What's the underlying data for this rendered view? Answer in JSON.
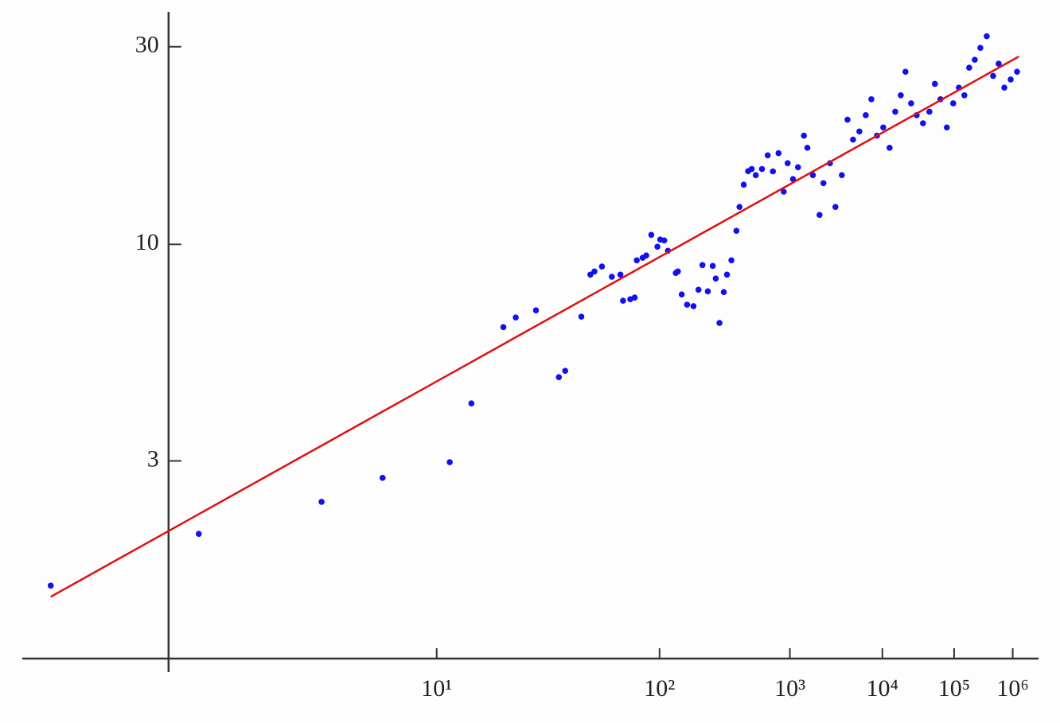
{
  "chart_data": {
    "type": "scatter",
    "xscale": "loglog",
    "yscale": "log",
    "xlim": [
      1.886,
      3170000
    ],
    "ylim": [
      1,
      35.6
    ],
    "xticks": [
      {
        "value": 10,
        "label": "10¹"
      },
      {
        "value": 100,
        "label": "10²"
      },
      {
        "value": 1000,
        "label": "10³"
      },
      {
        "value": 10000,
        "label": "10⁴"
      },
      {
        "value": 100000,
        "label": "10⁵"
      },
      {
        "value": 1000000,
        "label": "10⁶"
      }
    ],
    "yticks": [
      3,
      10,
      30
    ],
    "series": [
      {
        "type": "scatter",
        "color": "#1010f0",
        "x": [
          2,
          3,
          5,
          7,
          11,
          13,
          17,
          19,
          23,
          29,
          31,
          37,
          41,
          43,
          47,
          53,
          59,
          61,
          67,
          71,
          73,
          79,
          83,
          89,
          97,
          101,
          107,
          113,
          127,
          131,
          139,
          151,
          167,
          181,
          193,
          211,
          229,
          241,
          257,
          277,
          293,
          317,
          347,
          367,
          397,
          431,
          461,
          499,
          563,
          631,
          701,
          787,
          877,
          953,
          1069,
          1193,
          1361,
          1471,
          1669,
          1949,
          2137,
          2503,
          2861,
          3359,
          3877,
          4481,
          5297,
          6287,
          7331,
          8573,
          10253,
          12329,
          14557,
          17203,
          19861,
          23663,
          28183,
          34591,
          42649,
          51283,
          61949,
          77263,
          96827,
          118583,
          145207,
          173777,
          214789,
          266081,
          341983,
          441583,
          553351,
          699851,
          916229,
          1205047
        ],
        "values": [
          1.5,
          2.0,
          2.39,
          2.73,
          2.98,
          4.13,
          6.31,
          6.66,
          6.93,
          4.78,
          4.95,
          6.69,
          8.45,
          8.6,
          8.84,
          8.35,
          8.45,
          7.31,
          7.37,
          7.44,
          9.15,
          9.28,
          9.4,
          10.54,
          9.87,
          10.27,
          10.22,
          9.65,
          8.53,
          8.6,
          7.57,
          7.15,
          7.09,
          7.77,
          8.91,
          7.7,
          8.87,
          8.27,
          6.46,
          7.67,
          8.45,
          9.15,
          10.78,
          12.31,
          13.93,
          15.02,
          15.2,
          14.69,
          15.2,
          16.4,
          15.0,
          16.6,
          13.4,
          15.7,
          14.37,
          15.35,
          18.3,
          17.1,
          14.69,
          11.78,
          14.05,
          15.7,
          12.31,
          14.69,
          20.0,
          17.9,
          18.73,
          20.5,
          22.4,
          18.3,
          19.15,
          17.1,
          20.9,
          22.9,
          26.1,
          21.9,
          20.5,
          19.6,
          20.9,
          24.4,
          22.4,
          19.15,
          21.9,
          23.9,
          22.9,
          26.7,
          27.9,
          29.8,
          31.8,
          25.5,
          27.3,
          23.9,
          25.0,
          26.1
        ]
      },
      {
        "type": "line",
        "color": "#e01010",
        "x": [
          2,
          1300000
        ],
        "values": [
          1.41,
          28.4
        ]
      }
    ]
  }
}
